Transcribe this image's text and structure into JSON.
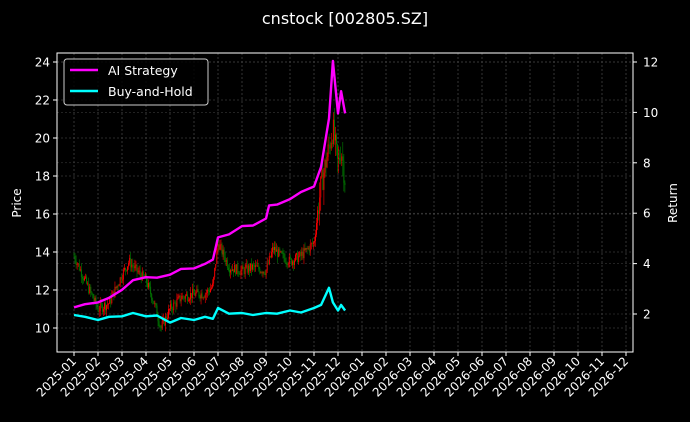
{
  "chart_data": {
    "type": "line",
    "title": "cnstock [002805.SZ]",
    "xlabel": "",
    "ylabel": "Price",
    "ylabel_right": "Return",
    "ylim": [
      8.8,
      24.5
    ],
    "ylim_right": [
      1.5,
      12.3
    ],
    "grid": true,
    "legend_position": "upper left",
    "x_ticks": [
      "2025-01",
      "2025-02",
      "2025-03",
      "2025-04",
      "2025-05",
      "2025-06",
      "2025-07",
      "2025-08",
      "2025-09",
      "2025-10",
      "2025-11",
      "2025-12",
      "2026-01",
      "2026-02",
      "2026-03",
      "2026-04",
      "2026-05",
      "2026-06",
      "2026-07",
      "2026-08",
      "2026-09",
      "2026-10",
      "2026-11",
      "2026-12"
    ],
    "y_ticks_left": [
      10,
      12,
      14,
      16,
      18,
      20,
      22,
      24
    ],
    "y_ticks_right": [
      2,
      4,
      6,
      8,
      10,
      12
    ],
    "series": [
      {
        "name": "AI Strategy",
        "axis": "right",
        "color": "#ff00ff",
        "x": [
          "2025-01-01",
          "2025-01-15",
          "2025-02-01",
          "2025-02-15",
          "2025-03-01",
          "2025-03-15",
          "2025-04-01",
          "2025-04-15",
          "2025-05-01",
          "2025-05-15",
          "2025-06-01",
          "2025-06-15",
          "2025-06-25",
          "2025-07-01",
          "2025-07-15",
          "2025-08-01",
          "2025-08-15",
          "2025-09-01",
          "2025-09-05",
          "2025-09-15",
          "2025-10-01",
          "2025-10-15",
          "2025-11-01",
          "2025-11-10",
          "2025-11-20",
          "2025-11-25",
          "2025-12-01",
          "2025-12-05",
          "2025-12-10"
        ],
        "values": [
          2.3,
          2.35,
          2.5,
          2.6,
          3.0,
          3.3,
          3.5,
          3.4,
          3.6,
          3.75,
          3.85,
          3.95,
          4.2,
          5.0,
          5.2,
          5.45,
          5.55,
          5.75,
          6.35,
          6.3,
          6.6,
          6.8,
          7.1,
          7.8,
          9.8,
          12.0,
          10.0,
          10.8,
          10.0
        ]
      },
      {
        "name": "Buy-and-Hold",
        "axis": "right",
        "color": "#00ffff",
        "x": [
          "2025-01-01",
          "2025-01-15",
          "2025-02-01",
          "2025-02-15",
          "2025-03-01",
          "2025-03-15",
          "2025-04-01",
          "2025-04-15",
          "2025-05-01",
          "2025-05-15",
          "2025-06-01",
          "2025-06-15",
          "2025-06-25",
          "2025-07-01",
          "2025-07-15",
          "2025-08-01",
          "2025-08-15",
          "2025-09-01",
          "2025-09-15",
          "2025-10-01",
          "2025-10-15",
          "2025-11-01",
          "2025-11-10",
          "2025-11-20",
          "2025-11-25",
          "2025-12-01",
          "2025-12-05",
          "2025-12-10"
        ],
        "values": [
          2.0,
          1.85,
          1.8,
          1.85,
          1.95,
          2.0,
          1.95,
          1.9,
          1.7,
          1.8,
          1.8,
          1.85,
          1.85,
          2.2,
          2.05,
          2.0,
          2.0,
          2.0,
          2.05,
          2.1,
          2.1,
          2.2,
          2.4,
          3.0,
          2.5,
          2.1,
          2.4,
          2.1
        ]
      },
      {
        "name": "Price (candlestick)",
        "axis": "left",
        "colors": {
          "up": "#ff0000",
          "down": "#008000"
        },
        "x": [
          "2025-01-01",
          "2025-01-15",
          "2025-02-01",
          "2025-02-15",
          "2025-03-01",
          "2025-03-10",
          "2025-03-20",
          "2025-04-01",
          "2025-04-10",
          "2025-04-20",
          "2025-05-01",
          "2025-05-15",
          "2025-06-01",
          "2025-06-15",
          "2025-06-25",
          "2025-07-01",
          "2025-07-15",
          "2025-08-01",
          "2025-08-15",
          "2025-09-01",
          "2025-09-10",
          "2025-09-20",
          "2025-10-01",
          "2025-10-15",
          "2025-11-01",
          "2025-11-10",
          "2025-11-20",
          "2025-11-25",
          "2025-12-01",
          "2025-12-05",
          "2025-12-10"
        ],
        "values": [
          13.8,
          12.5,
          11.0,
          11.3,
          12.8,
          13.5,
          13.0,
          12.5,
          11.5,
          10.0,
          11.0,
          11.6,
          11.8,
          11.8,
          12.2,
          14.5,
          13.2,
          13.0,
          13.2,
          13.0,
          14.2,
          13.8,
          13.5,
          13.8,
          14.5,
          17.5,
          19.5,
          20.5,
          18.5,
          19.5,
          17.8
        ]
      }
    ],
    "legend": [
      {
        "label": "AI Strategy",
        "color": "#ff00ff"
      },
      {
        "label": "Buy-and-Hold",
        "color": "#00ffff"
      }
    ]
  }
}
